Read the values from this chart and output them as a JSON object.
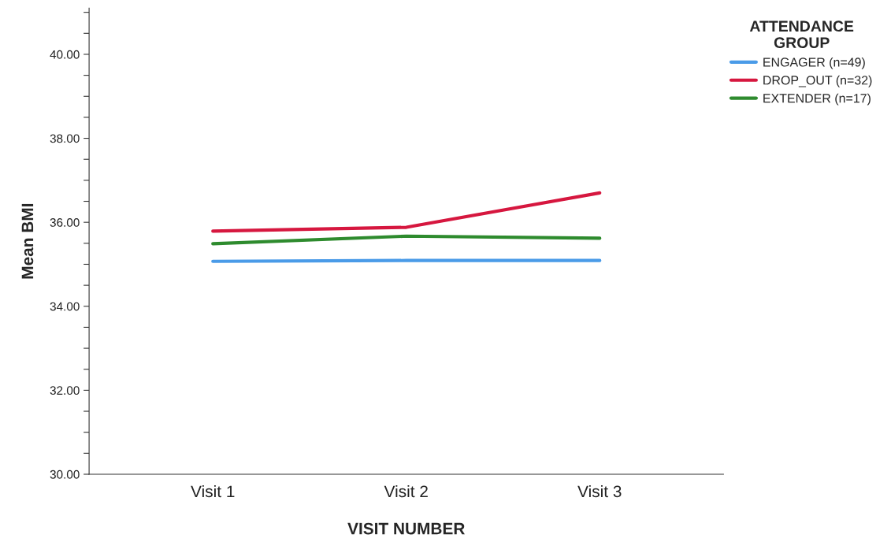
{
  "chart_data": {
    "type": "line",
    "xlabel": "VISIT NUMBER",
    "ylabel": "Mean BMI",
    "legend_title": "ATTENDANCE\nGROUP",
    "categories": [
      "Visit 1",
      "Visit 2",
      "Visit 3"
    ],
    "series": [
      {
        "name": "ENGAGER (n=49)",
        "color": "#4a9be8",
        "values": [
          35.07,
          35.09,
          35.09
        ]
      },
      {
        "name": "DROP_OUT (n=32)",
        "color": "#d6173f",
        "values": [
          35.79,
          35.88,
          36.7
        ]
      },
      {
        "name": "EXTENDER (n=17)",
        "color": "#2e8b2e",
        "values": [
          35.49,
          35.67,
          35.62
        ]
      }
    ],
    "ylim": [
      30,
      41.1
    ],
    "yticks": [
      {
        "value": 30,
        "label": "30.00"
      },
      {
        "value": 30.5,
        "label": null
      },
      {
        "value": 31,
        "label": null
      },
      {
        "value": 31.5,
        "label": null
      },
      {
        "value": 32,
        "label": "32.00"
      },
      {
        "value": 32.5,
        "label": null
      },
      {
        "value": 33,
        "label": null
      },
      {
        "value": 33.5,
        "label": null
      },
      {
        "value": 34,
        "label": "34.00"
      },
      {
        "value": 34.5,
        "label": null
      },
      {
        "value": 35,
        "label": null
      },
      {
        "value": 35.5,
        "label": null
      },
      {
        "value": 36,
        "label": "36.00"
      },
      {
        "value": 36.5,
        "label": null
      },
      {
        "value": 37,
        "label": null
      },
      {
        "value": 37.5,
        "label": null
      },
      {
        "value": 38,
        "label": "38.00"
      },
      {
        "value": 38.5,
        "label": null
      },
      {
        "value": 39,
        "label": null
      },
      {
        "value": 39.5,
        "label": null
      },
      {
        "value": 40,
        "label": "40.00"
      },
      {
        "value": 40.5,
        "label": null
      },
      {
        "value": 41,
        "label": null
      }
    ],
    "grid": false,
    "legend": "top right",
    "marker": "none",
    "line_style": "solid"
  }
}
